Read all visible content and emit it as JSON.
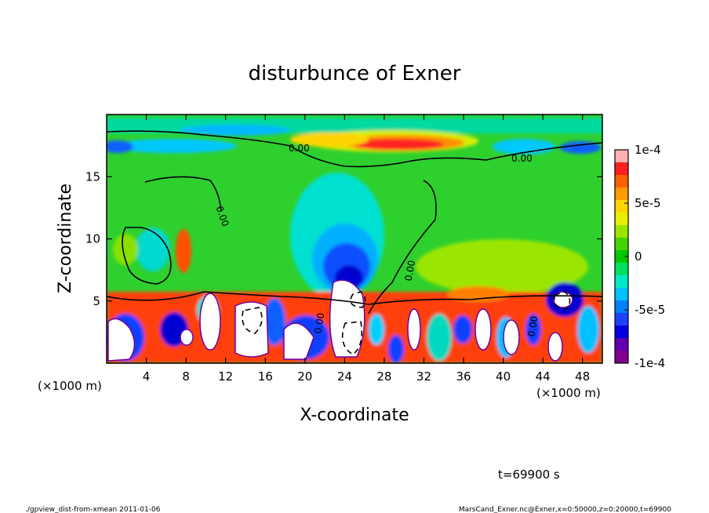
{
  "chart_data": {
    "type": "heatmap",
    "title": "disturbunce of Exner",
    "xlabel": "X-coordinate",
    "ylabel": "Z-coordinate",
    "x_unit": "(×1000 m)",
    "y_unit": "(×1000 m)",
    "xlim": [
      0,
      50
    ],
    "ylim": [
      0,
      20
    ],
    "x_ticks": [
      4,
      8,
      12,
      16,
      20,
      24,
      28,
      32,
      36,
      40,
      44,
      48
    ],
    "y_ticks": [
      5,
      10,
      15
    ],
    "contour_label": "0.00",
    "colorbar": {
      "range": [
        -0.0001,
        0.0001
      ],
      "tick_labels": [
        "1e-4",
        "5e-5",
        "0",
        "-5e-5",
        "-1e-4"
      ],
      "tick_values": [
        0.0001,
        5e-05,
        0,
        -5e-05,
        -0.0001
      ],
      "colors": [
        "#ffb0b0",
        "#ff2020",
        "#ff6000",
        "#ff9a00",
        "#ffd400",
        "#e6f000",
        "#9be600",
        "#46d400",
        "#00c800",
        "#00e060",
        "#00e8c8",
        "#00c0ff",
        "#0080ff",
        "#2040ff",
        "#0000e0",
        "#6000b0",
        "#800090"
      ]
    },
    "time_label": "t=69900 s",
    "footer_left": "./gpview_dist-from-xmean   2011-01-06",
    "footer_right": "MarsCand_Exner.nc@Exner,x=0:50000,z=0:20000,t=69900"
  }
}
